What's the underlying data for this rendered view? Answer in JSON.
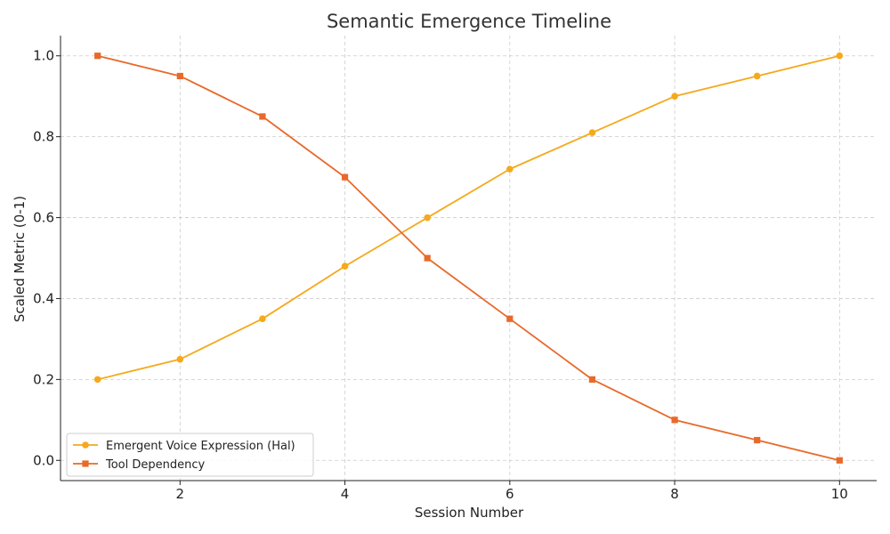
{
  "chart_data": {
    "type": "line",
    "title": "Semantic Emergence Timeline",
    "xlabel": "Session Number",
    "ylabel": "Scaled Metric (0-1)",
    "x": [
      1,
      2,
      3,
      4,
      5,
      6,
      7,
      8,
      9,
      10
    ],
    "xlim": [
      0.55,
      10.45
    ],
    "ylim": [
      -0.05,
      1.05
    ],
    "xticks": [
      2,
      4,
      6,
      8,
      10
    ],
    "xtick_labels": [
      "2",
      "4",
      "6",
      "8",
      "10"
    ],
    "yticks": [
      0.0,
      0.2,
      0.4,
      0.6,
      0.8,
      1.0
    ],
    "ytick_labels": [
      "0.0",
      "0.2",
      "0.4",
      "0.6",
      "0.8",
      "1.0"
    ],
    "grid": true,
    "legend_position": "lower-left",
    "series": [
      {
        "name": "Emergent Voice Expression (Hal)",
        "color": "#f5a91b",
        "marker": "circle",
        "values": [
          0.2,
          0.25,
          0.35,
          0.48,
          0.6,
          0.72,
          0.81,
          0.9,
          0.95,
          1.0
        ]
      },
      {
        "name": "Tool Dependency",
        "color": "#e8692a",
        "marker": "square",
        "values": [
          1.0,
          0.95,
          0.85,
          0.7,
          0.5,
          0.35,
          0.2,
          0.1,
          0.05,
          0.0
        ]
      }
    ]
  }
}
